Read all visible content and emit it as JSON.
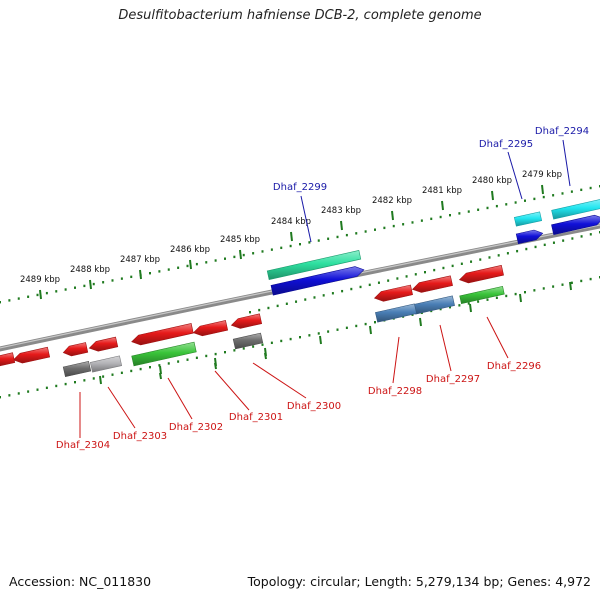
{
  "title": "Desulfitobacterium hafniense DCB-2, complete genome",
  "footer": {
    "accession": "Accession: NC_011830",
    "summary": "Topology: circular; Length: 5,279,134 bp; Genes: 4,972"
  },
  "colors": {
    "backbone": "#8a8a8a",
    "tick": "#1f7a1f",
    "label_top": "#1a1aa8",
    "label_bottom": "#cc1414",
    "red": "#e61a1a",
    "blue": "#1010d8",
    "mint": "#2ee0a0",
    "cyan": "#22e6f0",
    "green": "#3ac43a",
    "grey": "#6e6e6e",
    "lightgrey": "#b4b4b8",
    "steel": "#4a7fb6"
  },
  "scale_labels": [
    "2489 kbp",
    "2488 kbp",
    "2487 kbp",
    "2486 kbp",
    "2485 kbp",
    "2484 kbp",
    "2483 kbp",
    "2482 kbp",
    "2481 kbp",
    "2480 kbp",
    "2479 kbp"
  ],
  "gene_labels_top": [
    "Dhaf_2299",
    "Dhaf_2295",
    "Dhaf_2294"
  ],
  "gene_labels_bottom": [
    "Dhaf_2304",
    "Dhaf_2303",
    "Dhaf_2302",
    "Dhaf_2301",
    "Dhaf_2300",
    "Dhaf_2298",
    "Dhaf_2297",
    "Dhaf_2296"
  ]
}
